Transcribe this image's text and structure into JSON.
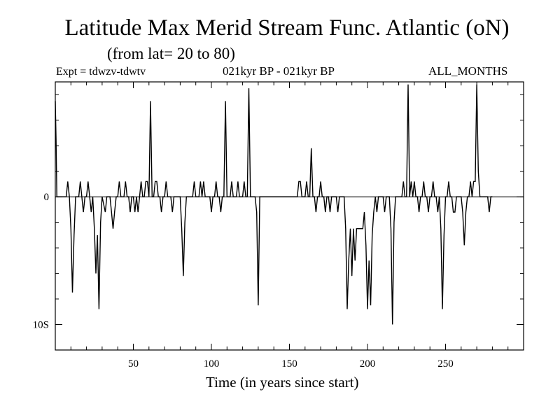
{
  "header": {
    "title": "Latitude Max Merid Stream Func. Atlantic (oN)",
    "subtitle": "(from lat= 20 to 80)",
    "experiment": "Expt = tdwzv-tdwtv",
    "period": "021kyr BP - 021kyr BP",
    "months": "ALL_MONTHS"
  },
  "chart_data": {
    "type": "line",
    "title": "Latitude Max Merid Stream Func. Atlantic (oN)",
    "xlabel": "Time (in years since start)",
    "ylabel": "",
    "xlim": [
      0,
      300
    ],
    "ylim": [
      -12,
      9
    ],
    "x_ticks": [
      50,
      100,
      150,
      200,
      250
    ],
    "y_ticks": [
      {
        "value": 0,
        "label": "0"
      },
      {
        "value": -10,
        "label": "10S"
      }
    ],
    "grid": false,
    "line_color": "#000000",
    "series": [
      {
        "points": [
          [
            0,
            7.5
          ],
          [
            0.5,
            4.5
          ],
          [
            1,
            0
          ],
          [
            7,
            0
          ],
          [
            8,
            1.2
          ],
          [
            9,
            0
          ],
          [
            10,
            -2.5
          ],
          [
            11,
            -7.5
          ],
          [
            12,
            -3
          ],
          [
            13,
            0
          ],
          [
            15,
            0
          ],
          [
            16,
            1.2
          ],
          [
            17,
            0
          ],
          [
            18,
            -1.2
          ],
          [
            19,
            0
          ],
          [
            20,
            0
          ],
          [
            21,
            1.2
          ],
          [
            22,
            0
          ],
          [
            23,
            -1.2
          ],
          [
            24,
            0
          ],
          [
            25,
            -2.5
          ],
          [
            26,
            -6
          ],
          [
            27,
            -3
          ],
          [
            28,
            -8.8
          ],
          [
            29,
            -2
          ],
          [
            30,
            0
          ],
          [
            32,
            -1.2
          ],
          [
            33,
            0
          ],
          [
            35,
            0
          ],
          [
            36,
            -1.2
          ],
          [
            37,
            -2.5
          ],
          [
            38,
            -1.2
          ],
          [
            39,
            0
          ],
          [
            40,
            0
          ],
          [
            41,
            1.2
          ],
          [
            42,
            0
          ],
          [
            44,
            0
          ],
          [
            45,
            1.2
          ],
          [
            46,
            0
          ],
          [
            47,
            0
          ],
          [
            48,
            -1.2
          ],
          [
            49,
            0
          ],
          [
            50,
            0
          ],
          [
            51,
            -1.2
          ],
          [
            52,
            0
          ],
          [
            53,
            -1.2
          ],
          [
            54,
            0
          ],
          [
            55,
            1.2
          ],
          [
            56,
            0
          ],
          [
            57,
            0
          ],
          [
            58,
            1.2
          ],
          [
            59,
            1.2
          ],
          [
            60,
            0
          ],
          [
            61,
            7.5
          ],
          [
            62,
            0
          ],
          [
            63,
            0
          ],
          [
            64,
            1.2
          ],
          [
            65,
            1.2
          ],
          [
            66,
            0
          ],
          [
            67,
            0
          ],
          [
            68,
            -1.2
          ],
          [
            69,
            0
          ],
          [
            70,
            0
          ],
          [
            71,
            1.2
          ],
          [
            72,
            0
          ],
          [
            74,
            0
          ],
          [
            75,
            -1.2
          ],
          [
            76,
            0
          ],
          [
            80,
            0
          ],
          [
            81,
            -2.5
          ],
          [
            82,
            -6.2
          ],
          [
            83,
            -2
          ],
          [
            84,
            0
          ],
          [
            88,
            0
          ],
          [
            89,
            1.2
          ],
          [
            90,
            0
          ],
          [
            92,
            0
          ],
          [
            93,
            1.2
          ],
          [
            94,
            0
          ],
          [
            95,
            1.2
          ],
          [
            96,
            0
          ],
          [
            99,
            0
          ],
          [
            100,
            -1.2
          ],
          [
            101,
            0
          ],
          [
            102,
            0
          ],
          [
            103,
            1.2
          ],
          [
            104,
            0
          ],
          [
            105,
            0
          ],
          [
            106,
            -1.2
          ],
          [
            107,
            0
          ],
          [
            108,
            0
          ],
          [
            109,
            7.5
          ],
          [
            110,
            0
          ],
          [
            112,
            0
          ],
          [
            113,
            1.2
          ],
          [
            114,
            0
          ],
          [
            116,
            0
          ],
          [
            117,
            1.2
          ],
          [
            118,
            0
          ],
          [
            119,
            0
          ],
          [
            120,
            0
          ],
          [
            121,
            1.2
          ],
          [
            122,
            0
          ],
          [
            123,
            0
          ],
          [
            124,
            8.5
          ],
          [
            125,
            0
          ],
          [
            128,
            0
          ],
          [
            129,
            -1.2
          ],
          [
            130,
            -8.5
          ],
          [
            131,
            0
          ],
          [
            155,
            0
          ],
          [
            156,
            1.2
          ],
          [
            157,
            1.2
          ],
          [
            158,
            0
          ],
          [
            160,
            0
          ],
          [
            161,
            1.2
          ],
          [
            162,
            0
          ],
          [
            163,
            0
          ],
          [
            164,
            3.8
          ],
          [
            165,
            0
          ],
          [
            166,
            0
          ],
          [
            167,
            -1.2
          ],
          [
            168,
            0
          ],
          [
            169,
            0
          ],
          [
            170,
            1.2
          ],
          [
            171,
            0
          ],
          [
            172,
            0
          ],
          [
            173,
            -1.2
          ],
          [
            174,
            0
          ],
          [
            175,
            0
          ],
          [
            176,
            -1.2
          ],
          [
            177,
            0
          ],
          [
            180,
            0
          ],
          [
            181,
            -1.2
          ],
          [
            182,
            0
          ],
          [
            185,
            0
          ],
          [
            186,
            -2.5
          ],
          [
            187,
            -8.8
          ],
          [
            188,
            -5
          ],
          [
            189,
            -2.5
          ],
          [
            190,
            -6.2
          ],
          [
            191,
            -2.5
          ],
          [
            192,
            -5
          ],
          [
            193,
            -2.5
          ],
          [
            197,
            -2.5
          ],
          [
            198,
            -1.2
          ],
          [
            199,
            -3.8
          ],
          [
            200,
            -8.8
          ],
          [
            201,
            -5
          ],
          [
            202,
            -8.5
          ],
          [
            203,
            -3
          ],
          [
            204,
            -1.2
          ],
          [
            205,
            0
          ],
          [
            206,
            -1.2
          ],
          [
            207,
            0
          ],
          [
            210,
            0
          ],
          [
            211,
            -1.2
          ],
          [
            212,
            0
          ],
          [
            214,
            0
          ],
          [
            215,
            -2.5
          ],
          [
            216,
            -10
          ],
          [
            217,
            -2
          ],
          [
            218,
            0
          ],
          [
            222,
            0
          ],
          [
            223,
            1.2
          ],
          [
            224,
            0
          ],
          [
            225,
            0
          ],
          [
            226,
            8.8
          ],
          [
            227,
            0
          ],
          [
            228,
            1.2
          ],
          [
            229,
            0
          ],
          [
            230,
            1.2
          ],
          [
            231,
            0
          ],
          [
            232,
            0
          ],
          [
            233,
            -1.2
          ],
          [
            234,
            0
          ],
          [
            235,
            0
          ],
          [
            236,
            1.2
          ],
          [
            237,
            0
          ],
          [
            238,
            0
          ],
          [
            239,
            -1.2
          ],
          [
            240,
            0
          ],
          [
            241,
            0
          ],
          [
            242,
            1.2
          ],
          [
            243,
            0
          ],
          [
            244,
            0
          ],
          [
            245,
            -1.2
          ],
          [
            246,
            0
          ],
          [
            247,
            -2.5
          ],
          [
            248,
            -8.8
          ],
          [
            249,
            -3
          ],
          [
            250,
            0
          ],
          [
            251,
            0
          ],
          [
            252,
            1.2
          ],
          [
            253,
            0
          ],
          [
            254,
            0
          ],
          [
            255,
            -1.2
          ],
          [
            256,
            -1.2
          ],
          [
            257,
            0
          ],
          [
            260,
            0
          ],
          [
            261,
            -1.2
          ],
          [
            262,
            -3.8
          ],
          [
            263,
            -1.2
          ],
          [
            264,
            0
          ],
          [
            265,
            0
          ],
          [
            266,
            1.2
          ],
          [
            267,
            0
          ],
          [
            268,
            1.2
          ],
          [
            269,
            1.2
          ],
          [
            270,
            8.8
          ],
          [
            271,
            2
          ],
          [
            272,
            0
          ],
          [
            277,
            0
          ],
          [
            278,
            -1.2
          ],
          [
            279,
            0
          ],
          [
            280,
            0
          ]
        ]
      }
    ]
  }
}
